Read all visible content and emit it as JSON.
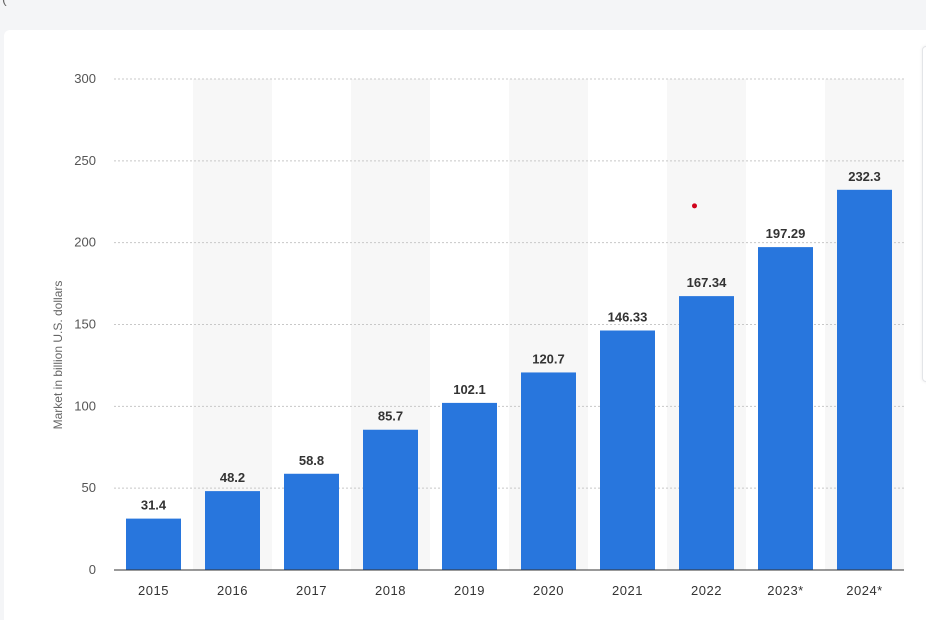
{
  "page": {
    "header_fragment": "(",
    "accent_color": "#2876dd"
  },
  "chart_data": {
    "type": "bar",
    "title": "",
    "xlabel": "",
    "ylabel": "Market in billion U.S. dollars",
    "categories": [
      "2015",
      "2016",
      "2017",
      "2018",
      "2019",
      "2020",
      "2021",
      "2022",
      "2023*",
      "2024*"
    ],
    "values": [
      31.4,
      48.2,
      58.8,
      85.7,
      102.1,
      120.7,
      146.33,
      167.34,
      197.29,
      232.3
    ],
    "value_labels": [
      "31.4",
      "48.2",
      "58.8",
      "85.7",
      "102.1",
      "120.7",
      "146.33",
      "167.34",
      "197.29",
      "232.3"
    ],
    "ylim": [
      0,
      300
    ],
    "yticks": [
      "0",
      "50",
      "100",
      "150",
      "200",
      "250",
      "300"
    ],
    "grid": true,
    "bar_color": "#2876dd",
    "alt_band_color": "#f7f7f7",
    "gridline_color": "#c8c8c8",
    "annotation_dot_color": "#d0021b"
  }
}
